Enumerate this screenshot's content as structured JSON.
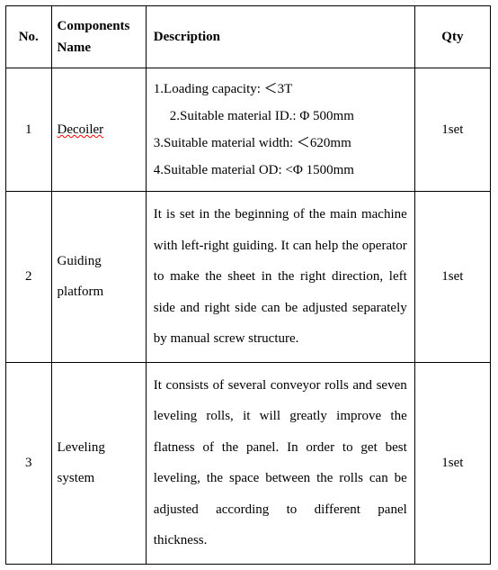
{
  "headers": {
    "no": "No.",
    "name": "Components Name",
    "desc": "Description",
    "qty": "Qty"
  },
  "rows": [
    {
      "no": "1",
      "name": "Decoiler",
      "name_spellcheck": true,
      "desc_lines": [
        "1.Loading capacity: ＜3T",
        "2.Suitable material ID.: Φ 500mm",
        "3.Suitable material width: ＜620mm",
        "4.Suitable material OD: <Φ 1500mm"
      ],
      "desc_indent": [
        false,
        true,
        false,
        false
      ],
      "qty": "1set"
    },
    {
      "no": "2",
      "name": "Guiding platform",
      "name_spellcheck": false,
      "desc_text": "It is set in the beginning of the main machine with left-right guiding. It can help the operator to make the sheet in the right direction, left side and right side can be adjusted separately by manual screw structure.",
      "qty": "1set"
    },
    {
      "no": "3",
      "name": "Leveling system",
      "name_spellcheck": false,
      "desc_text": "It consists of several conveyor rolls and seven leveling rolls, it will greatly improve the flatness of the panel. In order to get best leveling, the space between the rolls can be adjusted according to different panel thickness.",
      "qty": "1set"
    }
  ],
  "colors": {
    "border": "#000000",
    "background": "#ffffff",
    "text": "#000000",
    "spellcheck_underline": "#ff0000"
  },
  "typography": {
    "font_family": "Times New Roman",
    "header_fontsize_pt": 11,
    "body_fontsize_pt": 11,
    "line_height_body": 2.3
  }
}
